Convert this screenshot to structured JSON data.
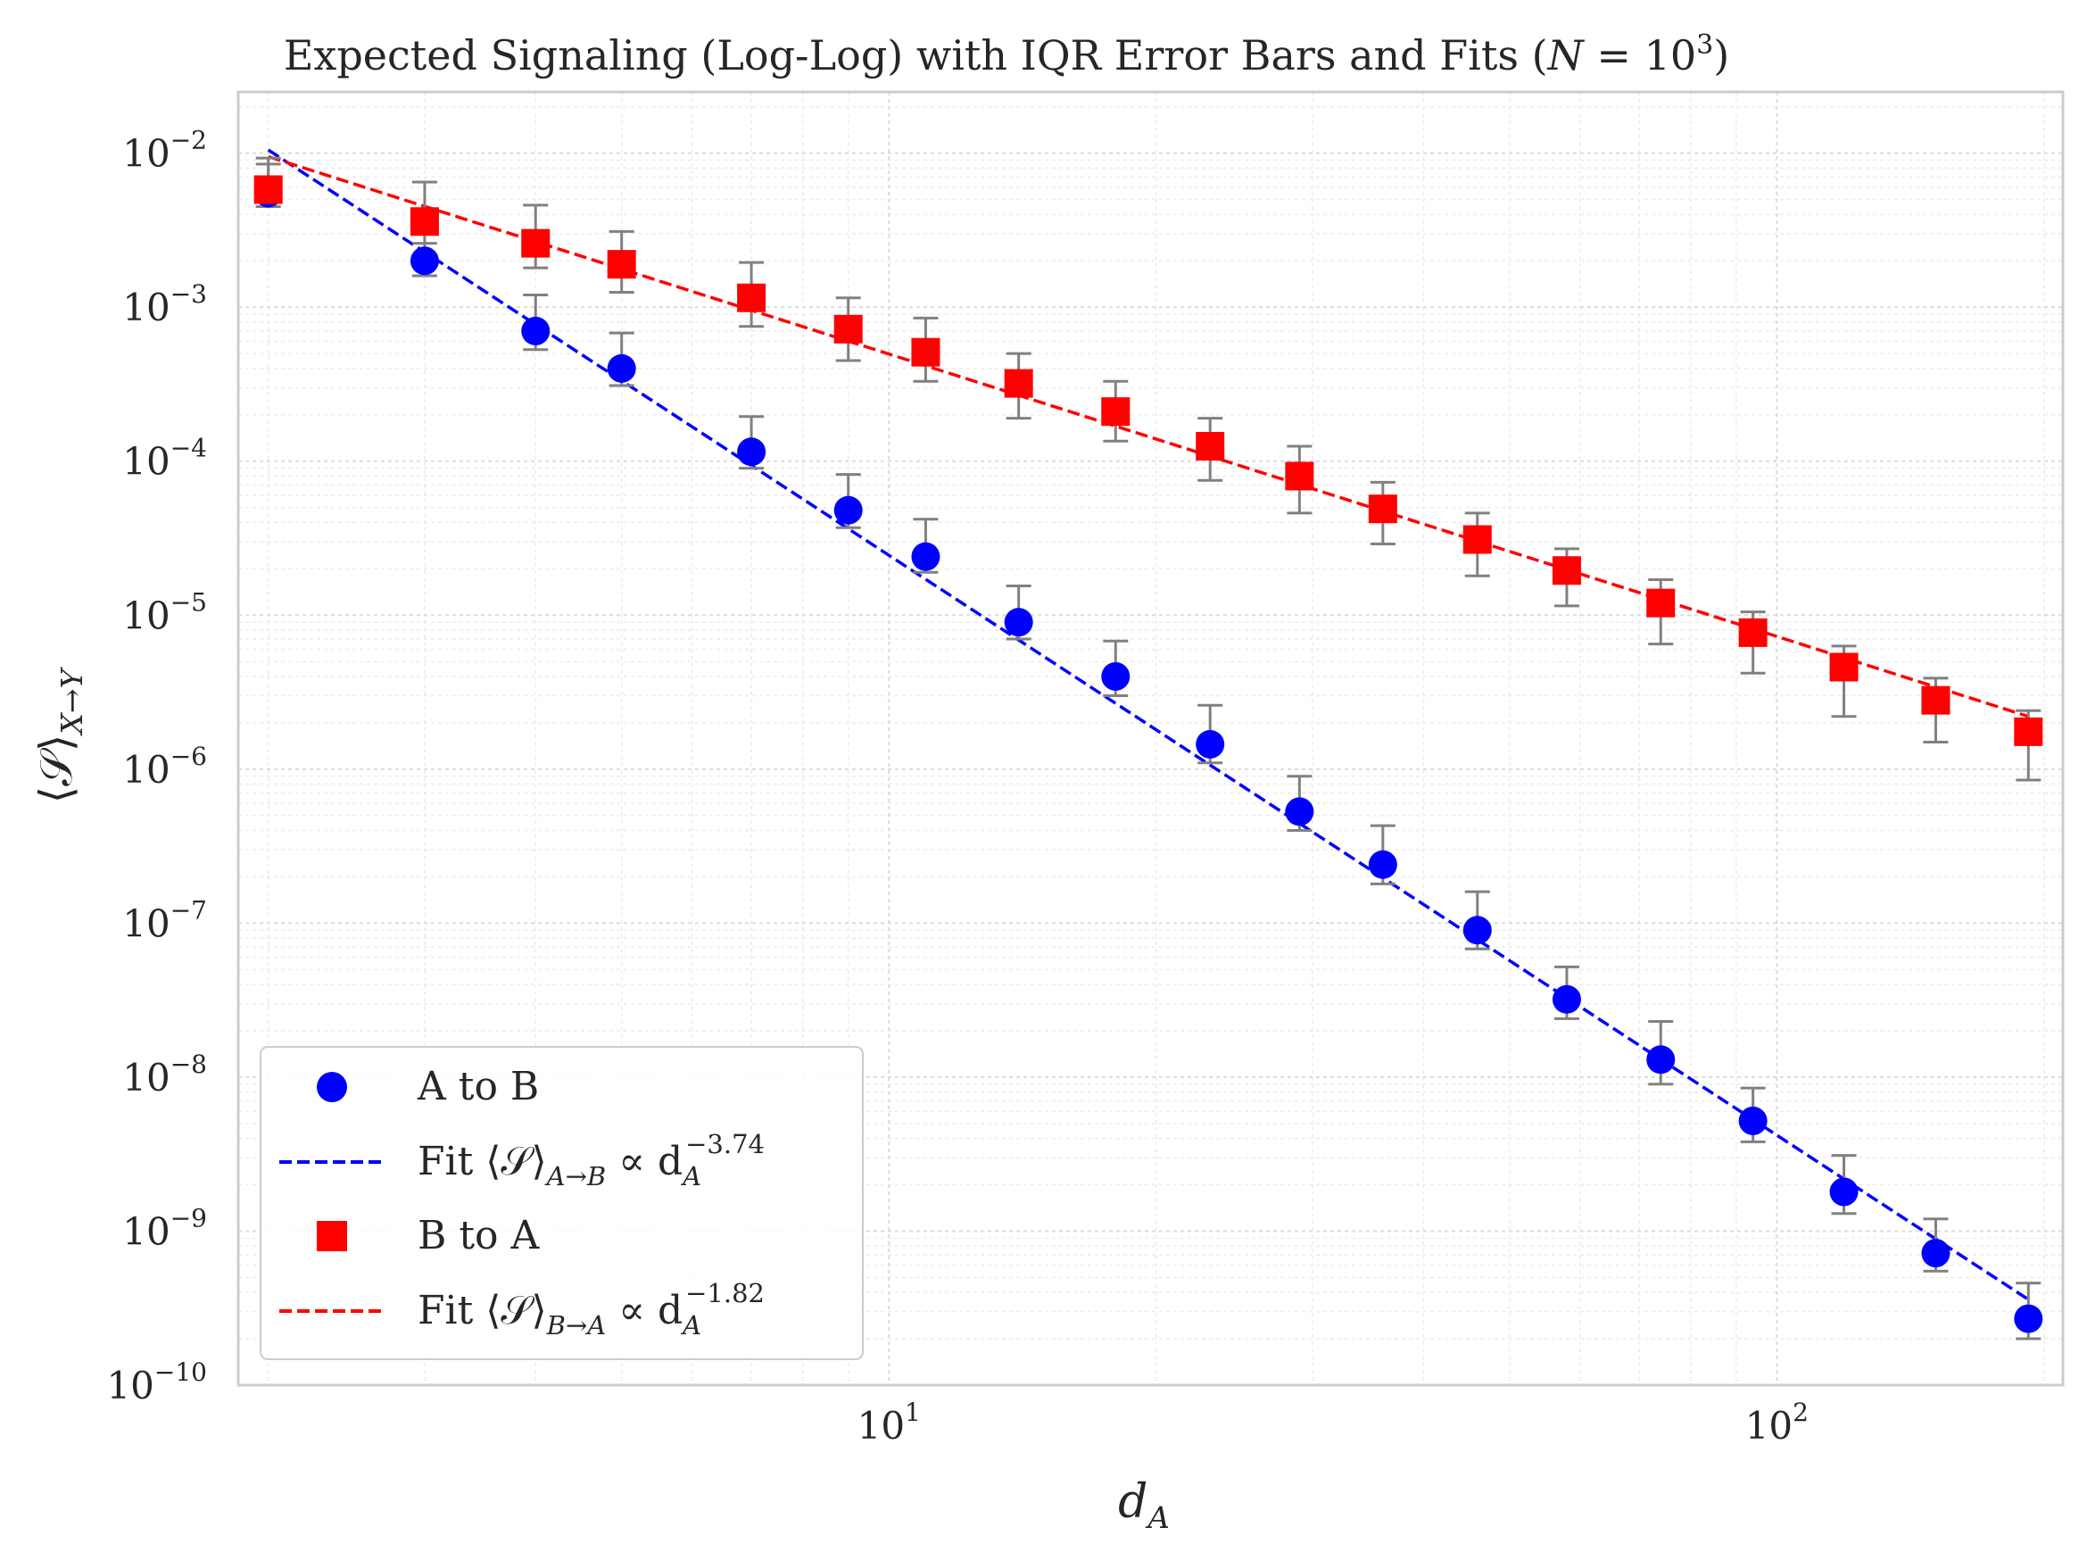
{
  "chart_data": {
    "type": "scatter",
    "title": {
      "text": "Expected Signaling (Log-Log) with IQR Error Bars and Fits (",
      "var": "N",
      "rel": " = 10",
      "sup": "3",
      "close": ")"
    },
    "xlabel": {
      "main": "d",
      "sub": "A"
    },
    "ylabel": {
      "main": "⟨𝒮⟩",
      "sub": "X→Y"
    },
    "xscale": "log",
    "yscale": "log",
    "xlim": [
      1.85,
      210
    ],
    "ylim": [
      1e-10,
      0.025
    ],
    "grid": true,
    "legend_position": "lower-left",
    "x_ticks": [
      {
        "value": 10,
        "base": "10",
        "exp": "1"
      },
      {
        "value": 100,
        "base": "10",
        "exp": "2"
      }
    ],
    "y_ticks": [
      {
        "value": 0.01,
        "base": "10",
        "exp": "−2"
      },
      {
        "value": 0.001,
        "base": "10",
        "exp": "−3"
      },
      {
        "value": 0.0001,
        "base": "10",
        "exp": "−4"
      },
      {
        "value": 1e-05,
        "base": "10",
        "exp": "−5"
      },
      {
        "value": 1e-06,
        "base": "10",
        "exp": "−6"
      },
      {
        "value": 1e-07,
        "base": "10",
        "exp": "−7"
      },
      {
        "value": 1e-08,
        "base": "10",
        "exp": "−8"
      },
      {
        "value": 1e-09,
        "base": "10",
        "exp": "−9"
      },
      {
        "value": 1e-10,
        "base": "10",
        "exp": "−10"
      }
    ],
    "x": [
      2,
      3,
      4,
      5,
      7,
      9,
      11,
      14,
      18,
      23,
      29,
      36,
      46,
      58,
      74,
      94,
      119,
      151,
      192
    ],
    "series": [
      {
        "name": "A to B",
        "marker": "circle",
        "color": "#0000ff",
        "values": [
          0.0055,
          0.002,
          0.0007,
          0.0004,
          0.000115,
          4.8e-05,
          2.4e-05,
          9e-06,
          4e-06,
          1.45e-06,
          5.3e-07,
          2.4e-07,
          9e-08,
          3.2e-08,
          1.3e-08,
          5.2e-09,
          1.8e-09,
          7.2e-10,
          2.7e-10
        ],
        "err_low": [
          0.0045,
          0.0016,
          0.00053,
          0.00031,
          9e-05,
          3.7e-05,
          1.9e-05,
          7e-06,
          3e-06,
          1.1e-06,
          4e-07,
          1.8e-07,
          6.8e-08,
          2.4e-08,
          9e-09,
          3.8e-09,
          1.3e-09,
          5.5e-10,
          2e-10
        ],
        "err_high": [
          0.0085,
          0.003,
          0.0012,
          0.00068,
          0.000195,
          8.2e-05,
          4.2e-05,
          1.55e-05,
          6.8e-06,
          2.6e-06,
          9e-07,
          4.3e-07,
          1.6e-07,
          5.2e-08,
          2.3e-08,
          8.5e-09,
          3.1e-09,
          1.2e-09,
          4.6e-10
        ]
      },
      {
        "name": "B to A",
        "marker": "square",
        "color": "#ff0000",
        "values": [
          0.0058,
          0.0036,
          0.0026,
          0.0019,
          0.00115,
          0.00072,
          0.00051,
          0.00032,
          0.00021,
          0.000125,
          8e-05,
          4.9e-05,
          3.1e-05,
          1.95e-05,
          1.2e-05,
          7.7e-06,
          4.6e-06,
          2.8e-06,
          1.75e-06
        ],
        "err_low": [
          0.0048,
          0.0026,
          0.0018,
          0.00125,
          0.00075,
          0.00045,
          0.00033,
          0.00019,
          0.000135,
          7.5e-05,
          4.6e-05,
          2.9e-05,
          1.8e-05,
          1.15e-05,
          6.5e-06,
          4.2e-06,
          2.2e-06,
          1.5e-06,
          8.5e-07
        ],
        "err_high": [
          0.0093,
          0.0065,
          0.0046,
          0.0031,
          0.00195,
          0.00115,
          0.00085,
          0.0005,
          0.00033,
          0.00019,
          0.000125,
          7.3e-05,
          4.6e-05,
          2.7e-05,
          1.7e-05,
          1.05e-05,
          6.3e-06,
          3.9e-06,
          2.4e-06
        ]
      }
    ],
    "fits": [
      {
        "series": "A to B",
        "color": "#0000ff",
        "exponent": -3.74,
        "points": [
          [
            2,
            0.0105
          ],
          [
            192,
            3.6e-10
          ]
        ],
        "label": {
          "prefix": "Fit ⟨𝒮⟩",
          "sub": "A→B",
          "mid": " ∝ d",
          "base_sub": "A",
          "sup": "−3.74"
        }
      },
      {
        "series": "B to A",
        "color": "#ff0000",
        "exponent": -1.82,
        "points": [
          [
            2,
            0.0095
          ],
          [
            192,
            2.2e-06
          ]
        ],
        "label": {
          "prefix": "Fit ⟨𝒮⟩",
          "sub": "B→A",
          "mid": " ∝ d",
          "base_sub": "A",
          "sup": "−1.82"
        }
      }
    ],
    "error_bar_color": "#808080"
  }
}
